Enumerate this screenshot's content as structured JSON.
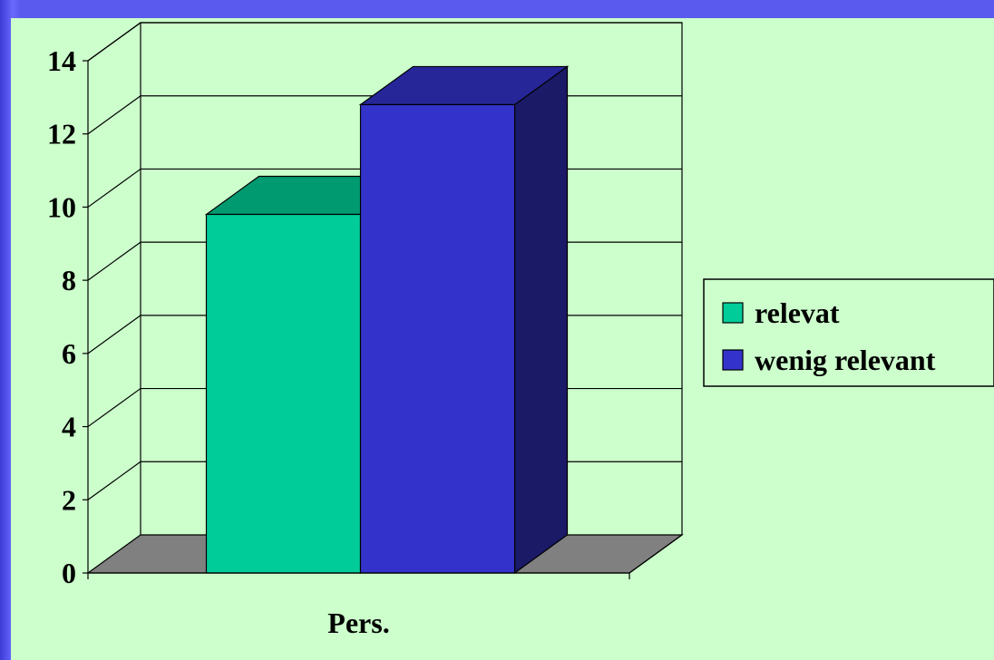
{
  "chart_data": {
    "type": "bar",
    "categories": [
      "Pers."
    ],
    "series": [
      {
        "name": "relevat",
        "values": [
          9.8
        ],
        "color": "#00cc99",
        "color_top": "#009a70",
        "color_side": "#007a58"
      },
      {
        "name": "wenig relevant",
        "values": [
          12.8
        ],
        "color": "#3333cc",
        "color_top": "#262699",
        "color_side": "#1a1a66"
      }
    ],
    "ylim": [
      0,
      14
    ],
    "yticks": [
      0,
      2,
      4,
      6,
      8,
      10,
      12,
      14
    ],
    "grid": true,
    "legend": "right",
    "floor_color": "#808080"
  }
}
